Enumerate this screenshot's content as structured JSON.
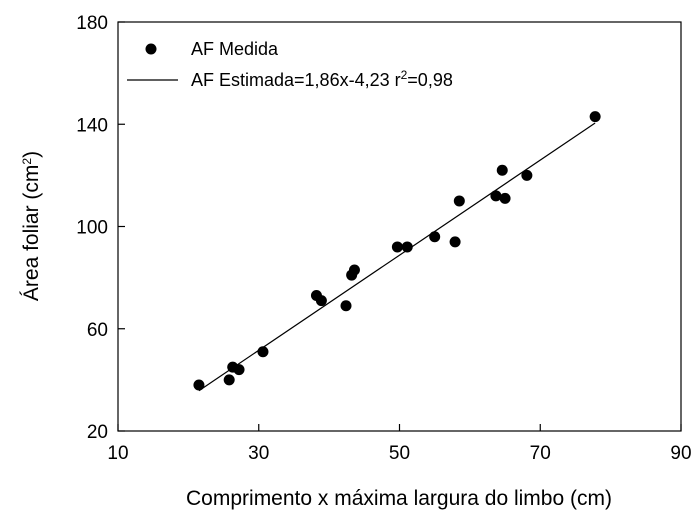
{
  "chart_data": {
    "type": "scatter",
    "xlabel": "Comprimento x máxima largura do limbo (cm)",
    "ylabel_base": "Área foliar (cm",
    "ylabel_sup": "2",
    "ylabel_close": ")",
    "xlim": [
      10,
      90
    ],
    "ylim": [
      20,
      180
    ],
    "xticks": [
      10,
      30,
      50,
      70,
      90
    ],
    "yticks": [
      20,
      60,
      100,
      140,
      180
    ],
    "grid": false,
    "legend_position": "top-left",
    "legend": {
      "points_label": "AF Medida",
      "line_label_main": "AF Estimada=1,86x-4,23 r",
      "line_label_sup": "2",
      "line_label_end": "=0,98"
    },
    "series": [
      {
        "name": "AF Medida",
        "kind": "points",
        "color": "#000000",
        "points": [
          [
            21.5,
            38
          ],
          [
            25.8,
            40
          ],
          [
            26.3,
            45
          ],
          [
            27.2,
            44
          ],
          [
            30.6,
            51
          ],
          [
            38.2,
            73
          ],
          [
            38.9,
            71
          ],
          [
            42.4,
            69
          ],
          [
            43.2,
            81
          ],
          [
            43.6,
            83
          ],
          [
            49.7,
            92
          ],
          [
            51.1,
            92
          ],
          [
            55.0,
            96
          ],
          [
            57.9,
            94
          ],
          [
            58.5,
            110
          ],
          [
            63.7,
            112
          ],
          [
            64.6,
            122
          ],
          [
            65.0,
            111
          ],
          [
            68.1,
            120
          ],
          [
            77.8,
            143
          ]
        ]
      },
      {
        "name": "AF Estimada",
        "kind": "line",
        "color": "#000000",
        "slope": 1.86,
        "intercept": -4.23,
        "x_range": [
          21.5,
          77.8
        ]
      }
    ]
  }
}
